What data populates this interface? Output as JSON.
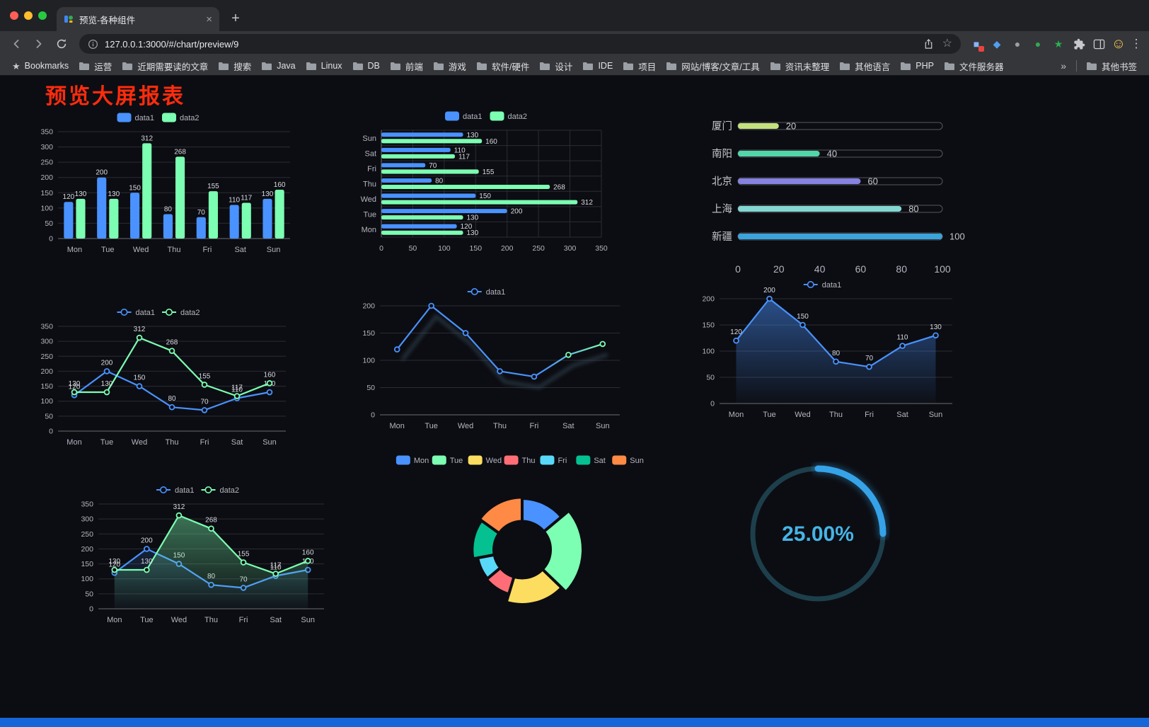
{
  "window": {
    "tab_title": "预览-各种组件",
    "url": "127.0.0.1:3000/#/chart/preview/9"
  },
  "toolbar": {
    "extensions": [
      {
        "name": "extension-colorful",
        "glyph": "■",
        "color": "#8ab4f8",
        "badge": "#e8453c"
      },
      {
        "name": "extension-blue-pin",
        "glyph": "◆",
        "color": "#4e9ff0",
        "badge": ""
      },
      {
        "name": "extension-gray-circle",
        "glyph": "●",
        "color": "#9aa0a6",
        "badge": ""
      },
      {
        "name": "extension-green-circle",
        "glyph": "●",
        "color": "#34a853",
        "badge": ""
      },
      {
        "name": "extension-green-star",
        "glyph": "★",
        "color": "#2bb24c",
        "badge": ""
      }
    ]
  },
  "bookmarks": {
    "label": "Bookmarks",
    "items": [
      {
        "label": "运营"
      },
      {
        "label": "近期需要读的文章"
      },
      {
        "label": "搜索"
      },
      {
        "label": "Java"
      },
      {
        "label": "Linux"
      },
      {
        "label": "DB"
      },
      {
        "label": "前端"
      },
      {
        "label": "游戏"
      },
      {
        "label": "软件/硬件"
      },
      {
        "label": "设计"
      },
      {
        "label": "IDE"
      },
      {
        "label": "项目"
      },
      {
        "label": "网站/博客/文章/工具"
      },
      {
        "label": "资讯未整理"
      },
      {
        "label": "其他语言"
      },
      {
        "label": "PHP"
      },
      {
        "label": "文件服务器"
      }
    ],
    "overflow": "»",
    "other_bookmarks": "其他书签"
  },
  "page": {
    "title": "预览大屏报表",
    "title_color": "#fe2c0d",
    "background": "#0c0d12"
  },
  "chart_data": [
    {
      "id": "chart-bar",
      "type": "bar",
      "categories": [
        "Mon",
        "Tue",
        "Wed",
        "Thu",
        "Fri",
        "Sat",
        "Sun"
      ],
      "series": [
        {
          "name": "data1",
          "color": "#4992ff",
          "values": [
            120,
            200,
            150,
            80,
            70,
            110,
            130
          ]
        },
        {
          "name": "data2",
          "color": "#7cffb2",
          "values": [
            130,
            130,
            312,
            268,
            155,
            117,
            160
          ]
        }
      ],
      "ylim": [
        0,
        350
      ],
      "ytick": 50,
      "grid": true,
      "legend_position": "top",
      "value_labels": true
    },
    {
      "id": "chart-hbar",
      "type": "hbar",
      "categories": [
        "Mon",
        "Tue",
        "Wed",
        "Thu",
        "Fri",
        "Sat",
        "Sun"
      ],
      "series": [
        {
          "name": "data1",
          "color": "#4992ff",
          "values": [
            120,
            200,
            150,
            80,
            70,
            110,
            130
          ]
        },
        {
          "name": "data2",
          "color": "#7cffb2",
          "values": [
            130,
            130,
            312,
            268,
            155,
            117,
            160
          ]
        }
      ],
      "xlim": [
        0,
        350
      ],
      "xtick": 50,
      "grid": true,
      "legend_position": "top",
      "value_labels": true
    },
    {
      "id": "chart-progress",
      "type": "progress",
      "xlim": [
        0,
        100
      ],
      "xticks": [
        0,
        20,
        40,
        60,
        80,
        100
      ],
      "items": [
        {
          "label": "厦门",
          "value": 20,
          "color": "#c3e27d"
        },
        {
          "label": "南阳",
          "value": 40,
          "color": "#52d6a9"
        },
        {
          "label": "北京",
          "value": 60,
          "color": "#8582e0"
        },
        {
          "label": "上海",
          "value": 80,
          "color": "#83d7d2"
        },
        {
          "label": "新疆",
          "value": 100,
          "color": "#3aa3dc"
        }
      ]
    },
    {
      "id": "chart-line-double",
      "type": "line",
      "categories": [
        "Mon",
        "Tue",
        "Wed",
        "Thu",
        "Fri",
        "Sat",
        "Sun"
      ],
      "series": [
        {
          "name": "data1",
          "color": "#4992ff",
          "values": [
            120,
            200,
            150,
            80,
            70,
            110,
            130
          ]
        },
        {
          "name": "data2",
          "color": "#7cffb2",
          "values": [
            130,
            130,
            312,
            268,
            155,
            117,
            160
          ]
        }
      ],
      "ylim": [
        0,
        350
      ],
      "ytick": 50,
      "grid": true,
      "legend_position": "top",
      "value_labels": true
    },
    {
      "id": "chart-line-gradient",
      "type": "line",
      "categories": [
        "Mon",
        "Tue",
        "Wed",
        "Thu",
        "Fri",
        "Sat",
        "Sun"
      ],
      "series": [
        {
          "name": "data1",
          "color": "#4992ff",
          "gradient": [
            "#4992ff",
            "#7cffb2"
          ],
          "values": [
            120,
            200,
            150,
            80,
            70,
            110,
            130
          ]
        }
      ],
      "ylim": [
        0,
        200
      ],
      "ytick": 50,
      "grid": true,
      "legend_position": "top",
      "value_labels": false,
      "shadow": true
    },
    {
      "id": "chart-area-single",
      "type": "line",
      "categories": [
        "Mon",
        "Tue",
        "Wed",
        "Thu",
        "Fri",
        "Sat",
        "Sun"
      ],
      "series": [
        {
          "name": "data1",
          "color": "#4992ff",
          "area": true,
          "area_opacity": 0.5,
          "values": [
            120,
            200,
            150,
            80,
            70,
            110,
            130
          ]
        }
      ],
      "ylim": [
        0,
        200
      ],
      "ytick": 50,
      "grid": true,
      "legend_position": "top",
      "value_labels": true
    },
    {
      "id": "chart-line-area",
      "type": "line",
      "categories": [
        "Mon",
        "Tue",
        "Wed",
        "Thu",
        "Fri",
        "Sat",
        "Sun"
      ],
      "series": [
        {
          "name": "data1",
          "color": "#4992ff",
          "area": true,
          "area_opacity": 0.16,
          "values": [
            120,
            200,
            150,
            80,
            70,
            110,
            130
          ]
        },
        {
          "name": "data2",
          "color": "#7cffb2",
          "area": true,
          "area_opacity": 0.42,
          "values": [
            130,
            130,
            312,
            268,
            155,
            117,
            160
          ]
        }
      ],
      "ylim": [
        0,
        350
      ],
      "ytick": 50,
      "grid": true,
      "legend_position": "top",
      "value_labels": true
    },
    {
      "id": "chart-pie",
      "type": "pie",
      "rose": true,
      "legend_position": "top",
      "legend": [
        "Mon",
        "Tue",
        "Wed",
        "Thu",
        "Fri",
        "Sat",
        "Sun"
      ],
      "values": [
        120,
        200,
        150,
        80,
        70,
        110,
        130
      ],
      "colors": [
        "#4992ff",
        "#7cffb2",
        "#fddd60",
        "#ff6e76",
        "#58d9f9",
        "#05c091",
        "#ff8a45"
      ]
    },
    {
      "id": "chart-gauge",
      "type": "gauge",
      "value": 25,
      "label": "25.00%",
      "color": "#36a3e8",
      "track_color": "#1d3f4c",
      "text_color": "#46b4e6"
    }
  ]
}
